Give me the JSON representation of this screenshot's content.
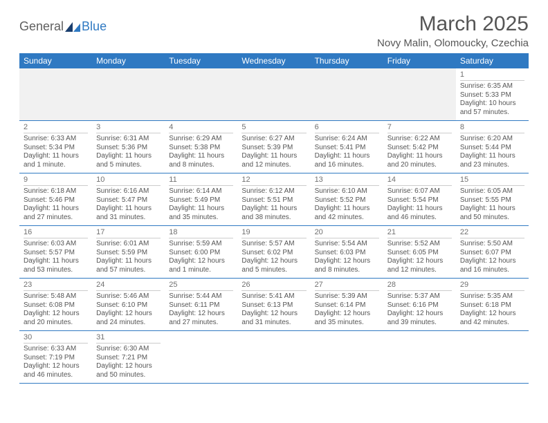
{
  "brand": {
    "text1": "General",
    "text2": "Blue"
  },
  "title": "March 2025",
  "location": "Novy Malin, Olomoucky, Czechia",
  "colors": {
    "header_bg": "#2f79c2",
    "header_fg": "#ffffff",
    "grid_line": "#2f79c2",
    "text": "#555555"
  },
  "day_headers": [
    "Sunday",
    "Monday",
    "Tuesday",
    "Wednesday",
    "Thursday",
    "Friday",
    "Saturday"
  ],
  "weeks": [
    [
      null,
      null,
      null,
      null,
      null,
      null,
      {
        "n": "1",
        "sr": "Sunrise: 6:35 AM",
        "ss": "Sunset: 5:33 PM",
        "dl": "Daylight: 10 hours and 57 minutes."
      }
    ],
    [
      {
        "n": "2",
        "sr": "Sunrise: 6:33 AM",
        "ss": "Sunset: 5:34 PM",
        "dl": "Daylight: 11 hours and 1 minute."
      },
      {
        "n": "3",
        "sr": "Sunrise: 6:31 AM",
        "ss": "Sunset: 5:36 PM",
        "dl": "Daylight: 11 hours and 5 minutes."
      },
      {
        "n": "4",
        "sr": "Sunrise: 6:29 AM",
        "ss": "Sunset: 5:38 PM",
        "dl": "Daylight: 11 hours and 8 minutes."
      },
      {
        "n": "5",
        "sr": "Sunrise: 6:27 AM",
        "ss": "Sunset: 5:39 PM",
        "dl": "Daylight: 11 hours and 12 minutes."
      },
      {
        "n": "6",
        "sr": "Sunrise: 6:24 AM",
        "ss": "Sunset: 5:41 PM",
        "dl": "Daylight: 11 hours and 16 minutes."
      },
      {
        "n": "7",
        "sr": "Sunrise: 6:22 AM",
        "ss": "Sunset: 5:42 PM",
        "dl": "Daylight: 11 hours and 20 minutes."
      },
      {
        "n": "8",
        "sr": "Sunrise: 6:20 AM",
        "ss": "Sunset: 5:44 PM",
        "dl": "Daylight: 11 hours and 23 minutes."
      }
    ],
    [
      {
        "n": "9",
        "sr": "Sunrise: 6:18 AM",
        "ss": "Sunset: 5:46 PM",
        "dl": "Daylight: 11 hours and 27 minutes."
      },
      {
        "n": "10",
        "sr": "Sunrise: 6:16 AM",
        "ss": "Sunset: 5:47 PM",
        "dl": "Daylight: 11 hours and 31 minutes."
      },
      {
        "n": "11",
        "sr": "Sunrise: 6:14 AM",
        "ss": "Sunset: 5:49 PM",
        "dl": "Daylight: 11 hours and 35 minutes."
      },
      {
        "n": "12",
        "sr": "Sunrise: 6:12 AM",
        "ss": "Sunset: 5:51 PM",
        "dl": "Daylight: 11 hours and 38 minutes."
      },
      {
        "n": "13",
        "sr": "Sunrise: 6:10 AM",
        "ss": "Sunset: 5:52 PM",
        "dl": "Daylight: 11 hours and 42 minutes."
      },
      {
        "n": "14",
        "sr": "Sunrise: 6:07 AM",
        "ss": "Sunset: 5:54 PM",
        "dl": "Daylight: 11 hours and 46 minutes."
      },
      {
        "n": "15",
        "sr": "Sunrise: 6:05 AM",
        "ss": "Sunset: 5:55 PM",
        "dl": "Daylight: 11 hours and 50 minutes."
      }
    ],
    [
      {
        "n": "16",
        "sr": "Sunrise: 6:03 AM",
        "ss": "Sunset: 5:57 PM",
        "dl": "Daylight: 11 hours and 53 minutes."
      },
      {
        "n": "17",
        "sr": "Sunrise: 6:01 AM",
        "ss": "Sunset: 5:59 PM",
        "dl": "Daylight: 11 hours and 57 minutes."
      },
      {
        "n": "18",
        "sr": "Sunrise: 5:59 AM",
        "ss": "Sunset: 6:00 PM",
        "dl": "Daylight: 12 hours and 1 minute."
      },
      {
        "n": "19",
        "sr": "Sunrise: 5:57 AM",
        "ss": "Sunset: 6:02 PM",
        "dl": "Daylight: 12 hours and 5 minutes."
      },
      {
        "n": "20",
        "sr": "Sunrise: 5:54 AM",
        "ss": "Sunset: 6:03 PM",
        "dl": "Daylight: 12 hours and 8 minutes."
      },
      {
        "n": "21",
        "sr": "Sunrise: 5:52 AM",
        "ss": "Sunset: 6:05 PM",
        "dl": "Daylight: 12 hours and 12 minutes."
      },
      {
        "n": "22",
        "sr": "Sunrise: 5:50 AM",
        "ss": "Sunset: 6:07 PM",
        "dl": "Daylight: 12 hours and 16 minutes."
      }
    ],
    [
      {
        "n": "23",
        "sr": "Sunrise: 5:48 AM",
        "ss": "Sunset: 6:08 PM",
        "dl": "Daylight: 12 hours and 20 minutes."
      },
      {
        "n": "24",
        "sr": "Sunrise: 5:46 AM",
        "ss": "Sunset: 6:10 PM",
        "dl": "Daylight: 12 hours and 24 minutes."
      },
      {
        "n": "25",
        "sr": "Sunrise: 5:44 AM",
        "ss": "Sunset: 6:11 PM",
        "dl": "Daylight: 12 hours and 27 minutes."
      },
      {
        "n": "26",
        "sr": "Sunrise: 5:41 AM",
        "ss": "Sunset: 6:13 PM",
        "dl": "Daylight: 12 hours and 31 minutes."
      },
      {
        "n": "27",
        "sr": "Sunrise: 5:39 AM",
        "ss": "Sunset: 6:14 PM",
        "dl": "Daylight: 12 hours and 35 minutes."
      },
      {
        "n": "28",
        "sr": "Sunrise: 5:37 AM",
        "ss": "Sunset: 6:16 PM",
        "dl": "Daylight: 12 hours and 39 minutes."
      },
      {
        "n": "29",
        "sr": "Sunrise: 5:35 AM",
        "ss": "Sunset: 6:18 PM",
        "dl": "Daylight: 12 hours and 42 minutes."
      }
    ],
    [
      {
        "n": "30",
        "sr": "Sunrise: 6:33 AM",
        "ss": "Sunset: 7:19 PM",
        "dl": "Daylight: 12 hours and 46 minutes."
      },
      {
        "n": "31",
        "sr": "Sunrise: 6:30 AM",
        "ss": "Sunset: 7:21 PM",
        "dl": "Daylight: 12 hours and 50 minutes."
      },
      null,
      null,
      null,
      null,
      null
    ]
  ]
}
